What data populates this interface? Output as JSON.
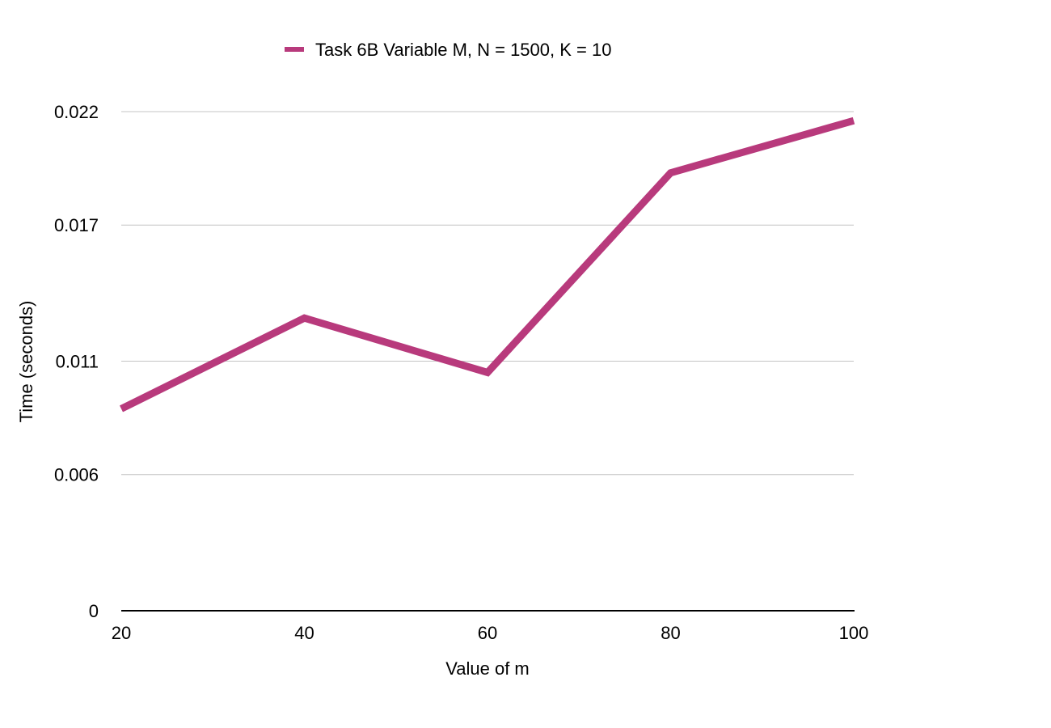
{
  "chart_data": {
    "type": "line",
    "title": "",
    "xlabel": "Value of m",
    "ylabel": "Time (seconds)",
    "x": [
      20,
      40,
      60,
      80,
      100
    ],
    "x_tick_labels": [
      "20",
      "40",
      "60",
      "80",
      "100"
    ],
    "y_ticks": [
      0,
      0.006,
      0.011,
      0.017,
      0.022
    ],
    "y_tick_labels": [
      "0",
      "0.006",
      "0.011",
      "0.017",
      "0.022"
    ],
    "ylim": [
      0,
      0.022
    ],
    "xlim": [
      20,
      100
    ],
    "grid": true,
    "legend_position": "top",
    "series": [
      {
        "name": "Task 6B Variable M, N = 1500, K = 10",
        "color": "#b83a7c",
        "values": [
          0.0089,
          0.0129,
          0.0105,
          0.0193,
          0.0216
        ]
      }
    ]
  }
}
